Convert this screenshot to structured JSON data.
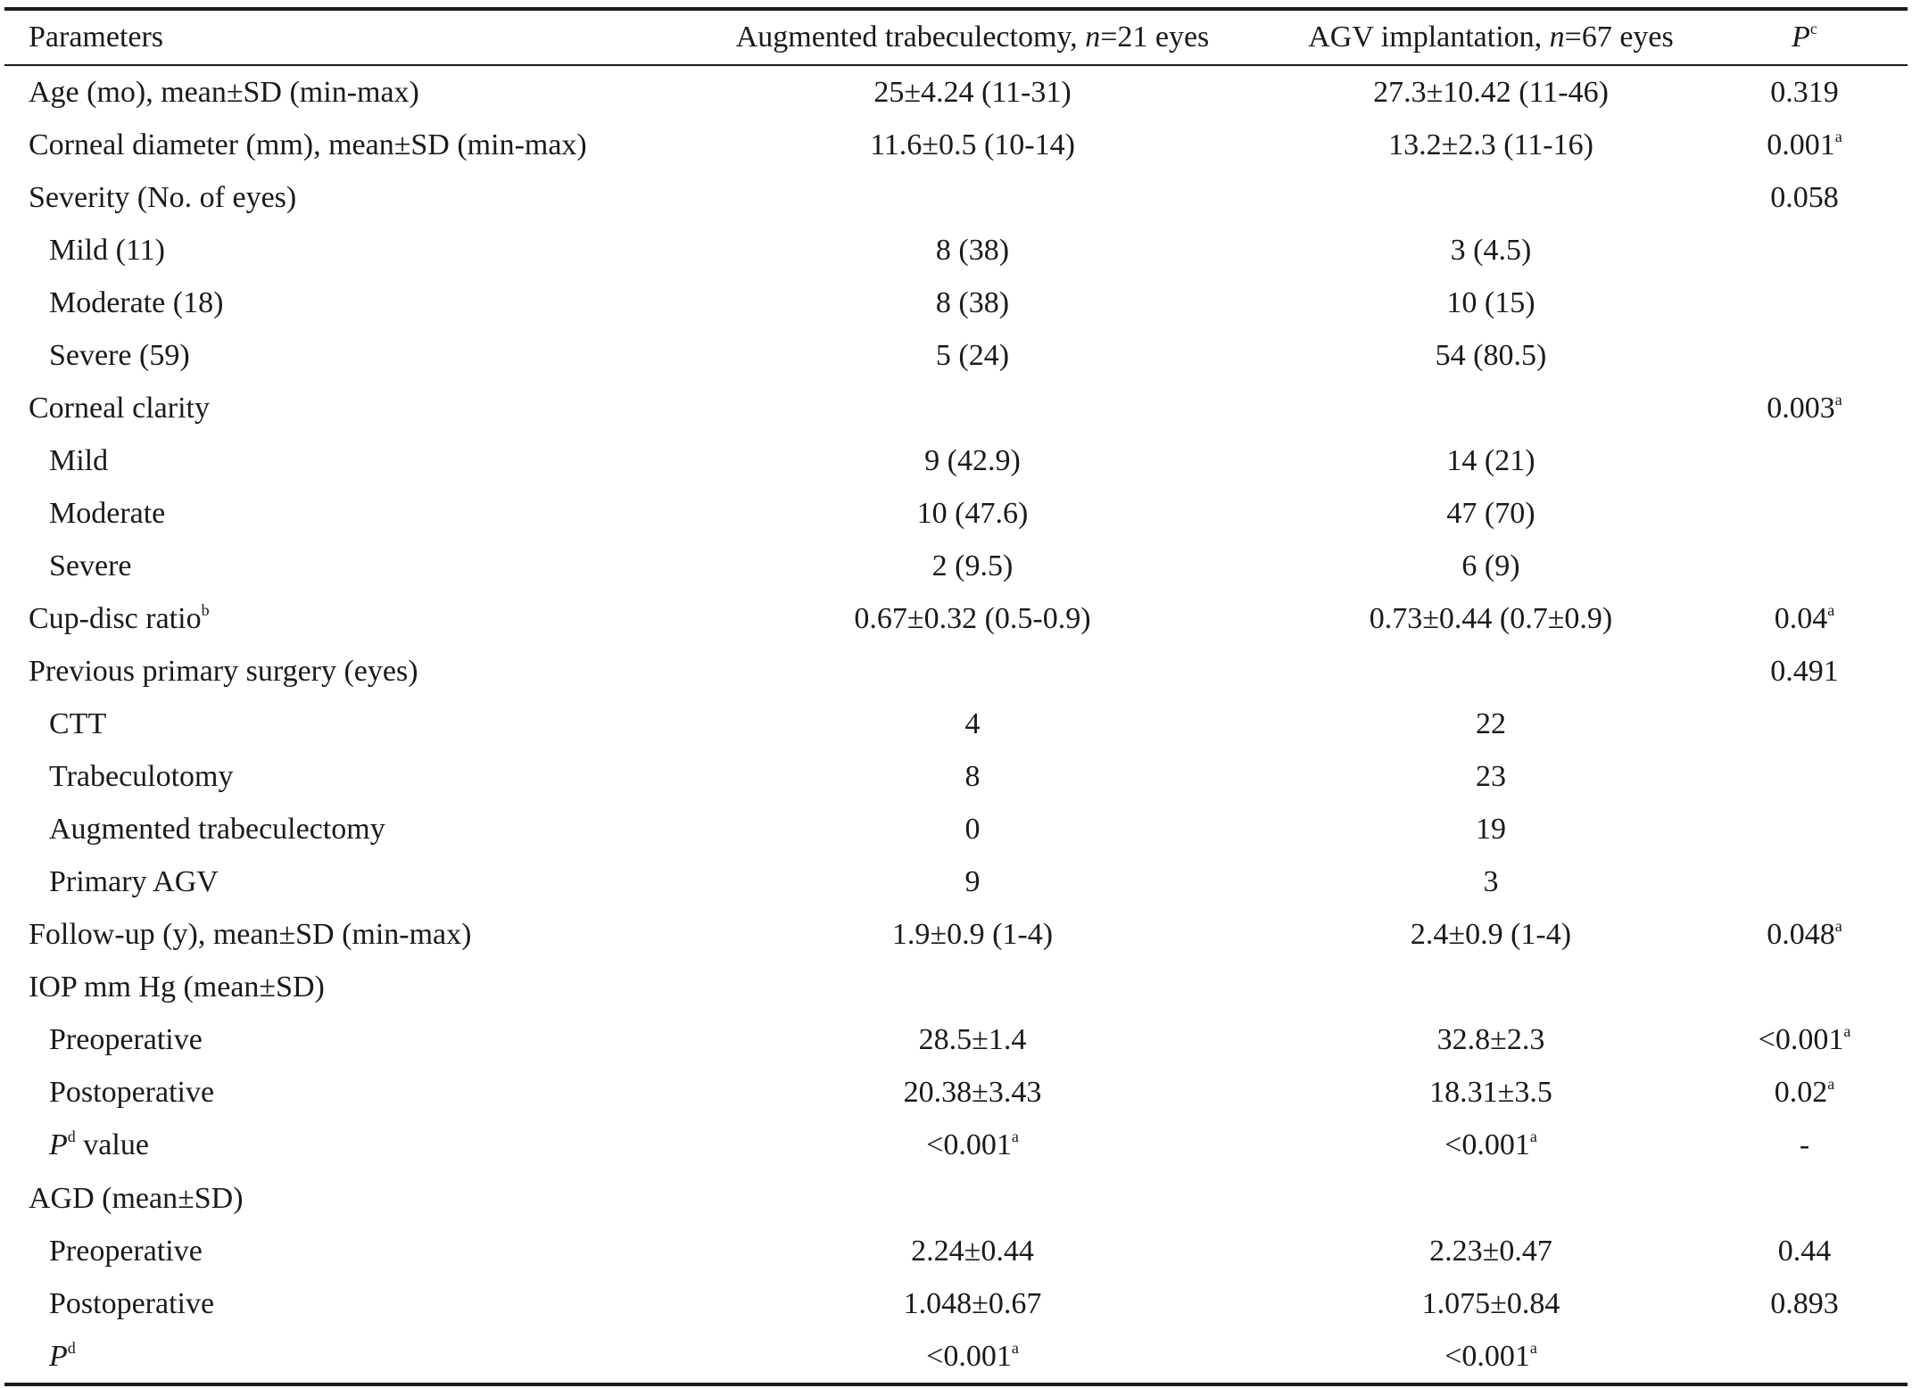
{
  "header": {
    "parameters": "Parameters",
    "col2_prefix": "Augmented trabeculectomy, ",
    "col2_n": "n",
    "col2_suffix": "=21 eyes",
    "col3_prefix": "AGV implantation, ",
    "col3_n": "n",
    "col3_suffix": "=67 eyes",
    "p_letter": "P",
    "p_sup": "c"
  },
  "rows": [
    {
      "param": "Age (mo), mean±SD (min-max)",
      "trab": "25±4.24 (11-31)",
      "agv": "27.3±10.42 (11-46)",
      "p": "0.319",
      "p_sup": ""
    },
    {
      "param": "Corneal diameter (mm), mean±SD (min-max)",
      "trab": "11.6±0.5 (10-14)",
      "agv": "13.2±2.3 (11-16)",
      "p": "0.001",
      "p_sup": "a"
    },
    {
      "param": "Severity (No. of eyes)",
      "trab": "",
      "agv": "",
      "p": "0.058",
      "p_sup": ""
    },
    {
      "param": "Mild (11)",
      "trab": "8 (38)",
      "agv": "3 (4.5)",
      "p": "",
      "p_sup": ""
    },
    {
      "param": "Moderate (18)",
      "trab": "8 (38)",
      "agv": "10 (15)",
      "p": "",
      "p_sup": ""
    },
    {
      "param": "Severe (59)",
      "trab": "5 (24)",
      "agv": "54 (80.5)",
      "p": "",
      "p_sup": ""
    },
    {
      "param": "Corneal clarity",
      "trab": "",
      "agv": "",
      "p": "0.003",
      "p_sup": "a"
    },
    {
      "param": "Mild",
      "trab": "9 (42.9)",
      "agv": "14 (21)",
      "p": "",
      "p_sup": ""
    },
    {
      "param": "Moderate",
      "trab": "10 (47.6)",
      "agv": "47 (70)",
      "p": "",
      "p_sup": ""
    },
    {
      "param": "Severe",
      "trab": "2 (9.5)",
      "agv": "6 (9)",
      "p": "",
      "p_sup": ""
    },
    {
      "param": "Cup-disc ratio",
      "param_sup": "b",
      "trab": "0.67±0.32 (0.5-0.9)",
      "agv": "0.73±0.44 (0.7±0.9)",
      "p": "0.04",
      "p_sup": "a"
    },
    {
      "param": "Previous primary surgery (eyes)",
      "trab": "",
      "agv": "",
      "p": "0.491",
      "p_sup": ""
    },
    {
      "param": "CTT",
      "trab": "4",
      "agv": "22",
      "p": "",
      "p_sup": ""
    },
    {
      "param": "Trabeculotomy",
      "trab": "8",
      "agv": "23",
      "p": "",
      "p_sup": ""
    },
    {
      "param": "Augmented trabeculectomy",
      "trab": "0",
      "agv": "19",
      "p": "",
      "p_sup": ""
    },
    {
      "param": "Primary AGV",
      "trab": "9",
      "agv": "3",
      "p": "",
      "p_sup": ""
    },
    {
      "param": "Follow-up (y), mean±SD (min-max)",
      "trab": "1.9±0.9 (1-4)",
      "agv": "2.4±0.9 (1-4)",
      "p": "0.048",
      "p_sup": "a"
    },
    {
      "param": "IOP mm Hg (mean±SD)",
      "trab": "",
      "agv": "",
      "p": "",
      "p_sup": ""
    },
    {
      "param": "Preoperative",
      "trab": "28.5±1.4",
      "agv": "32.8±2.3",
      "p": "<0.001",
      "p_sup": "a"
    },
    {
      "param": "Postoperative",
      "trab": "20.38±3.43",
      "agv": "18.31±3.5",
      "p": "0.02",
      "p_sup": "a"
    },
    {
      "param_italic": "P",
      "param_italic_sup": "d",
      "param": " value",
      "trab": "<0.001",
      "trab_sup": "a",
      "agv": "<0.001",
      "agv_sup": "a",
      "p": "-",
      "p_sup": ""
    },
    {
      "param": "AGD (mean±SD)",
      "trab": "",
      "agv": "",
      "p": "",
      "p_sup": ""
    },
    {
      "param": "Preoperative",
      "trab": "2.24±0.44",
      "agv": "2.23±0.47",
      "p": "0.44",
      "p_sup": ""
    },
    {
      "param": "Postoperative",
      "trab": "1.048±0.67",
      "agv": "1.075±0.84",
      "p": "0.893",
      "p_sup": ""
    },
    {
      "param_italic": "P",
      "param_italic_sup": "d",
      "param": "",
      "trab": "<0.001",
      "trab_sup": "a",
      "agv": "<0.001",
      "agv_sup": "a",
      "p": "",
      "p_sup": ""
    }
  ]
}
